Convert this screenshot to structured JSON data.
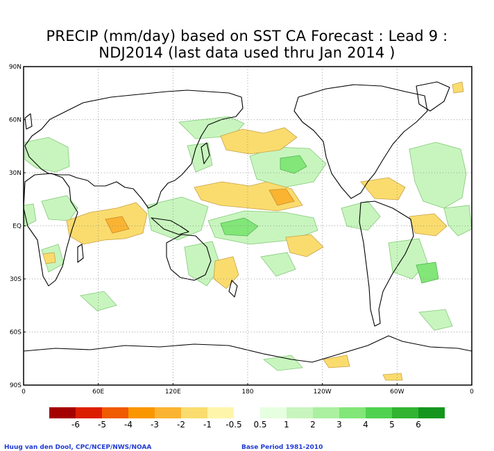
{
  "title": {
    "line1": "PRECIP (mm/day) based on SST CA Forecast : Lead 9 :",
    "line2": "NDJ2014 (last data used thru Jan 2014 )"
  },
  "map": {
    "lat_labels": [
      "90N",
      "60N",
      "30N",
      "EQ",
      "30S",
      "60S",
      "90S"
    ],
    "lon_labels": [
      "0",
      "60E",
      "120E",
      "180",
      "120W",
      "60W",
      "0"
    ],
    "grid": "dotted"
  },
  "colorbar": {
    "labels": [
      "-6",
      "-5",
      "-4",
      "-3",
      "-2",
      "-1",
      "-0.5",
      "0.5",
      "1",
      "2",
      "3",
      "4",
      "5",
      "6"
    ],
    "colors": [
      "#a50000",
      "#dc1e00",
      "#f05a00",
      "#fa9600",
      "#fab432",
      "#fadc6e",
      "#fff5aa",
      "#ffffff",
      "#e6ffe0",
      "#c8f5be",
      "#aaf0a0",
      "#82e678",
      "#50d250",
      "#32b432",
      "#14961e"
    ],
    "unit": "mm/day"
  },
  "footer": {
    "credit": "Huug van den Dool, CPC/NCEP/NWS/NOAA",
    "base_period": "Base Period 1981-2010"
  }
}
